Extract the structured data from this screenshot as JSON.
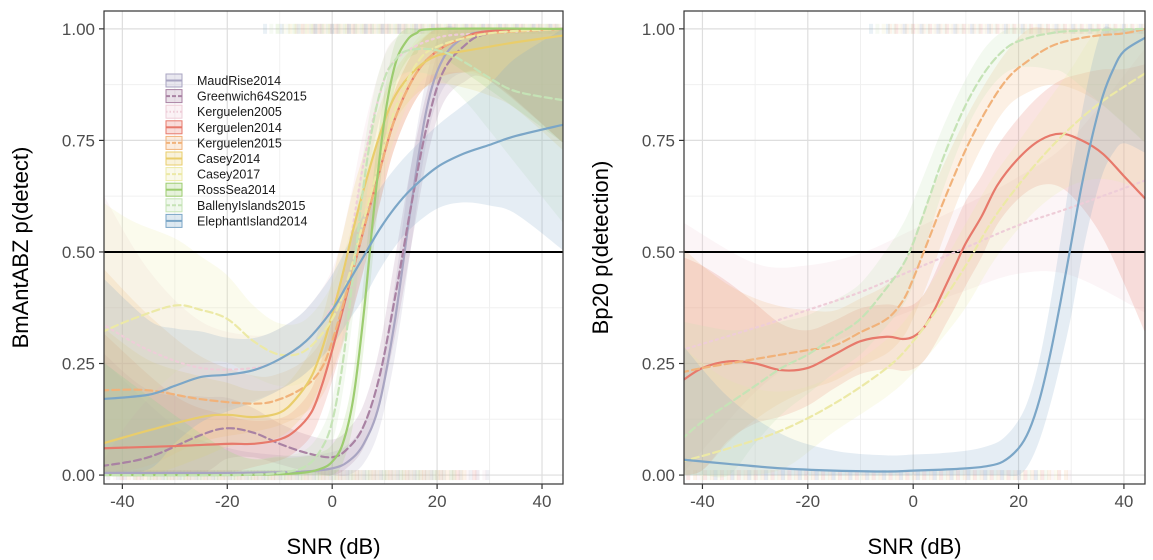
{
  "chart_data": [
    {
      "type": "line",
      "xlabel": "SNR (dB)",
      "ylabel": "BmAntABZ p(detect)",
      "xlim": [
        -43.5,
        44
      ],
      "ylim": [
        -0.02,
        1.04
      ],
      "xticks": [
        "-40",
        "-20",
        "0",
        "20",
        "40"
      ],
      "xtick_values": [
        -40,
        -20,
        0,
        20,
        40
      ],
      "yticks": [
        "0.00",
        "0.25",
        "0.50",
        "0.75",
        "1.00"
      ],
      "ytick_values": [
        0,
        0.25,
        0.5,
        0.75,
        1
      ],
      "grid": true,
      "hline": 0.5,
      "legend_position": "top-left",
      "legend": [
        "MaudRise2014",
        "Greenwich64S2015",
        "Kerguelen2005",
        "Kerguelen2014",
        "Kerguelen2015",
        "Casey2014",
        "Casey2017",
        "RossSea2014",
        "BallenyIslands2015",
        "ElephantIsland2014"
      ],
      "series": [
        {
          "name": "MaudRise2014",
          "color": "#a9a5c2",
          "dash": "solid",
          "x": [
            -44,
            -30,
            -20,
            -10,
            -5,
            0,
            3,
            6,
            9,
            12,
            15,
            18,
            21,
            25,
            30,
            44
          ],
          "y": [
            0.005,
            0.005,
            0.005,
            0.006,
            0.008,
            0.015,
            0.03,
            0.07,
            0.16,
            0.35,
            0.6,
            0.82,
            0.93,
            0.98,
            0.995,
            1.0
          ]
        },
        {
          "name": "Greenwich64S2015",
          "color": "#a982a3",
          "dash": "dashed",
          "x": [
            -44,
            -35,
            -25,
            -20,
            -15,
            -10,
            -5,
            0,
            3,
            6,
            9,
            12,
            15,
            18,
            21,
            25,
            30,
            44
          ],
          "y": [
            0.02,
            0.04,
            0.09,
            0.105,
            0.095,
            0.07,
            0.05,
            0.04,
            0.06,
            0.11,
            0.22,
            0.4,
            0.6,
            0.78,
            0.9,
            0.96,
            0.99,
            1.0
          ]
        },
        {
          "name": "Kerguelen2005",
          "color": "#eecdd8",
          "dash": "dotted",
          "x": [
            -44,
            -35,
            -25,
            -15,
            -10,
            -5,
            0,
            3,
            6,
            9,
            12,
            20,
            30,
            44
          ],
          "y": [
            0.34,
            0.28,
            0.24,
            0.24,
            0.26,
            0.3,
            0.38,
            0.5,
            0.7,
            0.85,
            0.93,
            0.98,
            0.99,
            1.0
          ]
        },
        {
          "name": "Kerguelen2014",
          "color": "#e7796b",
          "dash": "solid",
          "x": [
            -44,
            -30,
            -20,
            -15,
            -10,
            -7,
            -4,
            -2,
            0,
            2,
            4,
            6,
            9,
            12,
            16,
            20,
            25,
            30,
            44
          ],
          "y": [
            0.06,
            0.065,
            0.07,
            0.07,
            0.08,
            0.1,
            0.14,
            0.2,
            0.28,
            0.37,
            0.46,
            0.55,
            0.68,
            0.8,
            0.9,
            0.95,
            0.98,
            0.995,
            1.0
          ]
        },
        {
          "name": "Kerguelen2015",
          "color": "#f1b27a",
          "dash": "dashed",
          "x": [
            -44,
            -35,
            -25,
            -15,
            -10,
            -5,
            -2,
            0,
            3,
            6,
            9,
            12,
            16,
            20,
            25,
            30,
            44
          ],
          "y": [
            0.19,
            0.19,
            0.17,
            0.16,
            0.17,
            0.2,
            0.24,
            0.3,
            0.42,
            0.55,
            0.68,
            0.8,
            0.9,
            0.95,
            0.98,
            0.99,
            1.0
          ]
        },
        {
          "name": "Casey2014",
          "color": "#e9cd6b",
          "dash": "solid",
          "x": [
            -44,
            -35,
            -25,
            -20,
            -15,
            -10,
            -7,
            -4,
            -2,
            0,
            2,
            4,
            6,
            9,
            12,
            16,
            20,
            25,
            30,
            35,
            44
          ],
          "y": [
            0.07,
            0.1,
            0.13,
            0.135,
            0.13,
            0.14,
            0.17,
            0.22,
            0.28,
            0.36,
            0.45,
            0.55,
            0.64,
            0.76,
            0.85,
            0.91,
            0.94,
            0.95,
            0.96,
            0.97,
            0.985
          ]
        },
        {
          "name": "Casey2017",
          "color": "#ece9a6",
          "dash": "dashed",
          "x": [
            -44,
            -38,
            -30,
            -25,
            -20,
            -15,
            -10,
            -5,
            0,
            3,
            6,
            9,
            12,
            16,
            20,
            30,
            44
          ],
          "y": [
            0.32,
            0.35,
            0.38,
            0.37,
            0.35,
            0.3,
            0.27,
            0.28,
            0.35,
            0.44,
            0.57,
            0.7,
            0.82,
            0.92,
            0.96,
            0.99,
            1.0
          ]
        },
        {
          "name": "RossSea2014",
          "color": "#9ccc6f",
          "dash": "solid",
          "x": [
            -44,
            -20,
            -10,
            -5,
            -2,
            0,
            2,
            4,
            6,
            8,
            10,
            12,
            14,
            16,
            20,
            44
          ],
          "y": [
            0.0,
            0.0,
            0.002,
            0.006,
            0.015,
            0.03,
            0.07,
            0.17,
            0.36,
            0.6,
            0.8,
            0.92,
            0.97,
            0.99,
            1.0,
            1.0
          ]
        },
        {
          "name": "BallenyIslands2015",
          "color": "#c5e3b6",
          "dash": "dashed",
          "x": [
            -44,
            -20,
            -10,
            -5,
            -2,
            0,
            2,
            4,
            6,
            8,
            10,
            12,
            14,
            18,
            22,
            26,
            30,
            35,
            44
          ],
          "y": [
            0.0,
            0.0,
            0.005,
            0.02,
            0.06,
            0.12,
            0.25,
            0.45,
            0.65,
            0.8,
            0.89,
            0.93,
            0.95,
            0.955,
            0.945,
            0.92,
            0.89,
            0.86,
            0.84
          ]
        },
        {
          "name": "ElephantIsland2014",
          "color": "#7ba6c7",
          "dash": "solid",
          "x": [
            -44,
            -35,
            -30,
            -25,
            -20,
            -15,
            -10,
            -5,
            0,
            3,
            6,
            9,
            12,
            15,
            20,
            25,
            30,
            35,
            44
          ],
          "y": [
            0.17,
            0.18,
            0.2,
            0.22,
            0.225,
            0.235,
            0.26,
            0.3,
            0.37,
            0.43,
            0.49,
            0.55,
            0.6,
            0.64,
            0.69,
            0.72,
            0.74,
            0.76,
            0.785
          ]
        }
      ]
    },
    {
      "type": "line",
      "xlabel": "SNR (dB)",
      "ylabel": "Bp20 p(detection)",
      "xlim": [
        -43.5,
        44
      ],
      "ylim": [
        -0.02,
        1.04
      ],
      "xticks": [
        "-40",
        "-20",
        "0",
        "20",
        "40"
      ],
      "xtick_values": [
        -40,
        -20,
        0,
        20,
        40
      ],
      "yticks": [
        "0.00",
        "0.25",
        "0.50",
        "0.75",
        "1.00"
      ],
      "ytick_values": [
        0,
        0.25,
        0.5,
        0.75,
        1
      ],
      "grid": true,
      "hline": 0.5,
      "series": [
        {
          "name": "Kerguelen2005",
          "color": "#eecdd8",
          "dash": "dotted",
          "x": [
            -44,
            -30,
            -20,
            -10,
            0,
            10,
            20,
            30,
            44
          ],
          "y": [
            0.28,
            0.33,
            0.37,
            0.41,
            0.46,
            0.51,
            0.56,
            0.6,
            0.66
          ]
        },
        {
          "name": "Kerguelen2014",
          "color": "#e7796b",
          "dash": "solid",
          "x": [
            -44,
            -40,
            -35,
            -30,
            -25,
            -20,
            -15,
            -10,
            -5,
            -2,
            0,
            2,
            4,
            6,
            8,
            10,
            13,
            16,
            20,
            24,
            28,
            32,
            36,
            40,
            44
          ],
          "y": [
            0.21,
            0.24,
            0.255,
            0.25,
            0.235,
            0.24,
            0.27,
            0.3,
            0.31,
            0.305,
            0.31,
            0.33,
            0.37,
            0.42,
            0.47,
            0.52,
            0.58,
            0.65,
            0.71,
            0.75,
            0.765,
            0.75,
            0.72,
            0.67,
            0.62
          ]
        },
        {
          "name": "Kerguelen2015",
          "color": "#f1b27a",
          "dash": "dashed",
          "x": [
            -44,
            -40,
            -35,
            -30,
            -25,
            -20,
            -15,
            -10,
            -5,
            -2,
            0,
            3,
            6,
            10,
            14,
            18,
            22,
            26,
            30,
            35,
            40,
            44
          ],
          "y": [
            0.23,
            0.24,
            0.25,
            0.26,
            0.27,
            0.28,
            0.29,
            0.32,
            0.35,
            0.39,
            0.44,
            0.53,
            0.62,
            0.73,
            0.82,
            0.89,
            0.93,
            0.96,
            0.975,
            0.985,
            0.99,
            1.0
          ]
        },
        {
          "name": "Casey2017",
          "color": "#ece9a6",
          "dash": "dashed",
          "x": [
            -44,
            -35,
            -25,
            -15,
            -5,
            0,
            5,
            10,
            15,
            20,
            25,
            30,
            35,
            40,
            44
          ],
          "y": [
            0.03,
            0.06,
            0.1,
            0.16,
            0.24,
            0.3,
            0.38,
            0.47,
            0.57,
            0.65,
            0.72,
            0.78,
            0.83,
            0.87,
            0.9
          ]
        },
        {
          "name": "BallenyIslands2015",
          "color": "#c5e3b6",
          "dash": "dashed",
          "x": [
            -44,
            -40,
            -35,
            -30,
            -25,
            -20,
            -15,
            -10,
            -5,
            -2,
            0,
            3,
            6,
            10,
            14,
            18,
            22,
            26,
            30,
            44
          ],
          "y": [
            0.08,
            0.12,
            0.16,
            0.2,
            0.24,
            0.27,
            0.31,
            0.35,
            0.42,
            0.47,
            0.52,
            0.62,
            0.72,
            0.83,
            0.91,
            0.96,
            0.98,
            0.99,
            0.995,
            1.0
          ]
        },
        {
          "name": "ElephantIsland2014",
          "color": "#7ba6c7",
          "dash": "solid",
          "x": [
            -44,
            -35,
            -25,
            -15,
            -5,
            0,
            5,
            10,
            14,
            17,
            20,
            22,
            24,
            26,
            28,
            30,
            32,
            34,
            36,
            38,
            40,
            44
          ],
          "y": [
            0.035,
            0.025,
            0.015,
            0.01,
            0.008,
            0.01,
            0.012,
            0.015,
            0.02,
            0.03,
            0.06,
            0.1,
            0.17,
            0.27,
            0.39,
            0.52,
            0.65,
            0.76,
            0.85,
            0.91,
            0.95,
            0.98
          ]
        }
      ]
    }
  ]
}
